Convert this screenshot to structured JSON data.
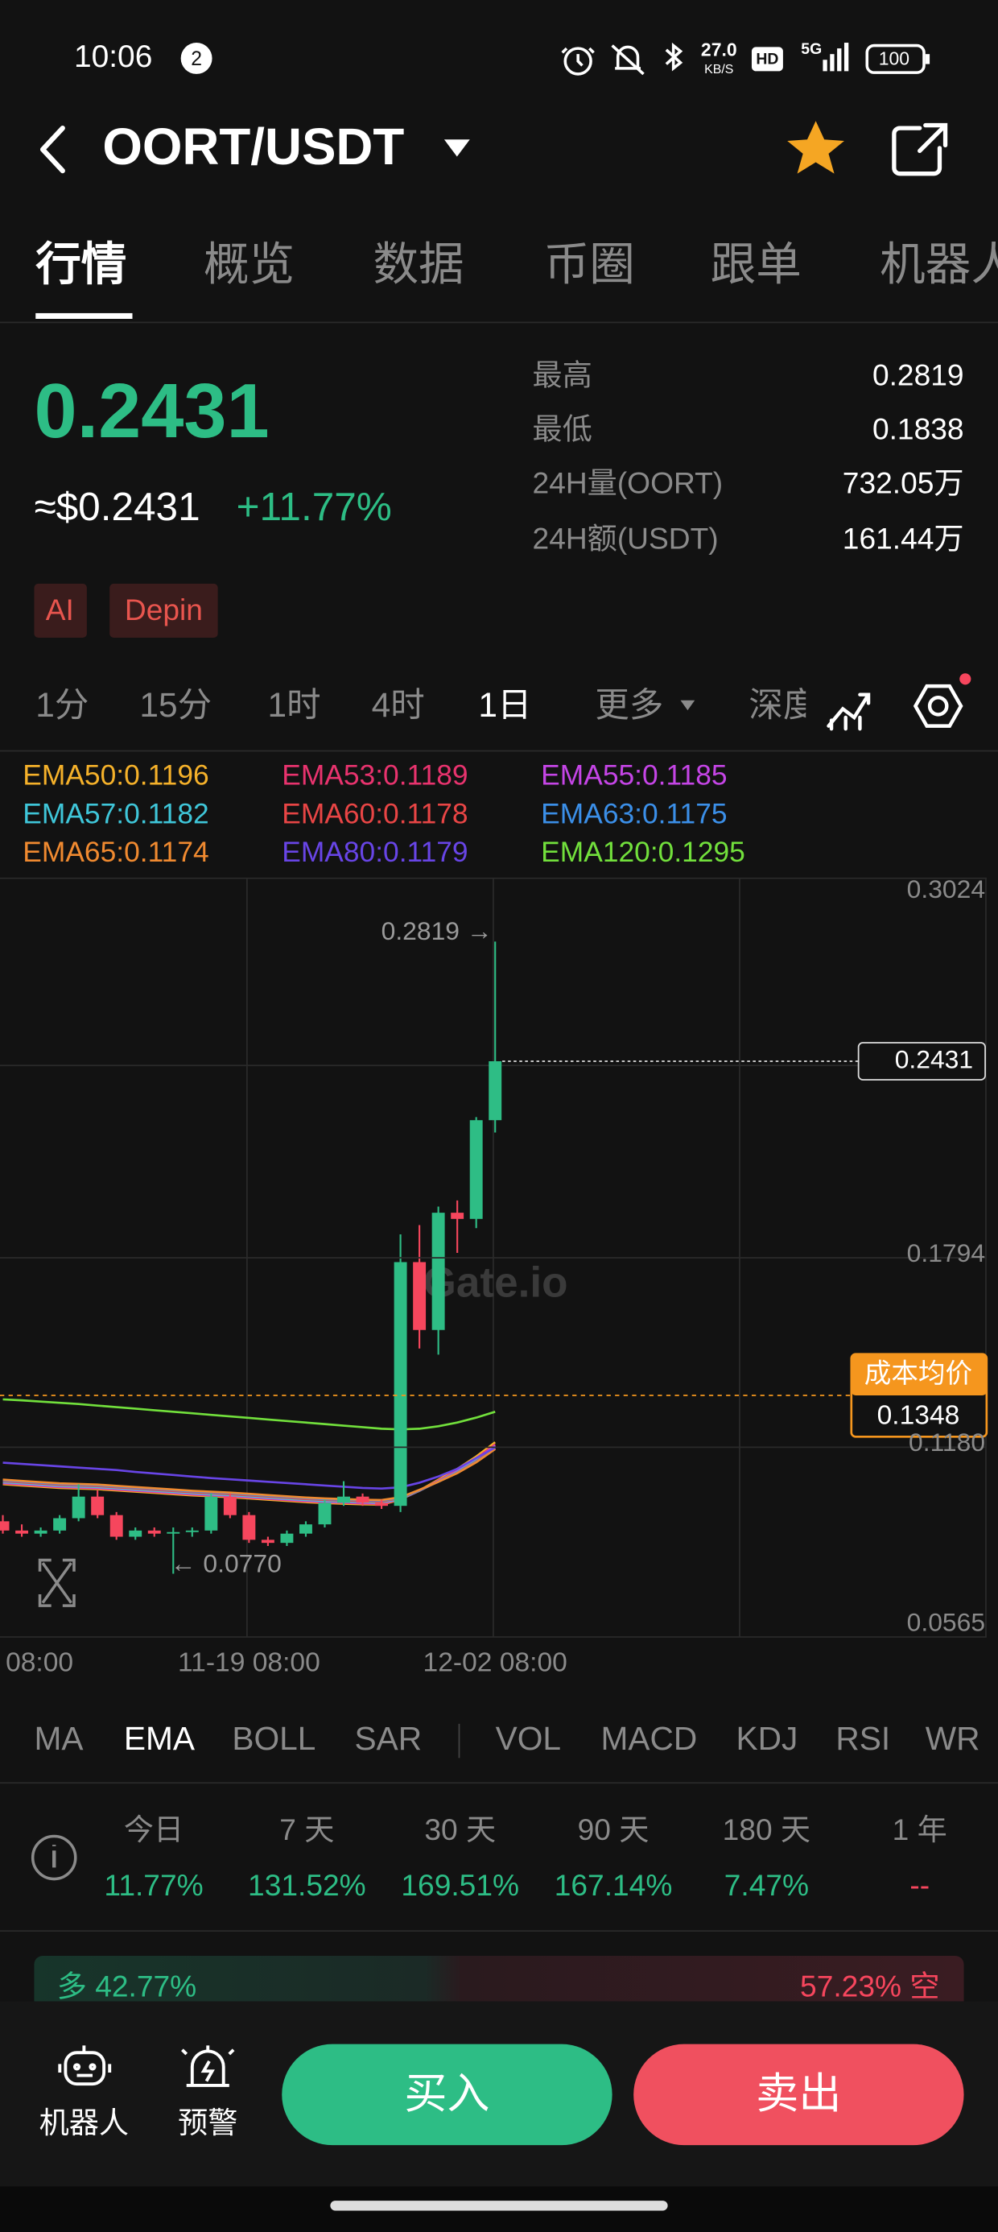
{
  "status_bar": {
    "time": "10:06",
    "badge": "2",
    "speed": "27.0",
    "speed_unit": "KB/S",
    "hd": "HD",
    "network": "5G",
    "battery": "100"
  },
  "header": {
    "pair": "OORT/USDT"
  },
  "tabs": [
    "行情",
    "概览",
    "数据",
    "币圈",
    "跟单",
    "机器人"
  ],
  "price": {
    "last": "0.2431",
    "usd": "≈$0.2431",
    "change": "+11.77%"
  },
  "stats": [
    {
      "label": "最高",
      "value": "0.2819"
    },
    {
      "label": "最低",
      "value": "0.1838"
    },
    {
      "label": "24H量(OORT)",
      "value": "732.05万"
    },
    {
      "label": "24H额(USDT)",
      "value": "161.44万"
    }
  ],
  "tags": [
    "AI",
    "Depin"
  ],
  "intervals": [
    "1分",
    "15分",
    "1时",
    "4时",
    "1日",
    "更多",
    "深度"
  ],
  "chart_data": {
    "type": "candlestick",
    "categories": [
      "08:00",
      null,
      null,
      null,
      null,
      null,
      null,
      null,
      null,
      null,
      null,
      null,
      null,
      "11-19 08:00",
      null,
      null,
      null,
      null,
      null,
      null,
      null,
      null,
      null,
      null,
      null,
      null,
      "12-02 08:00"
    ],
    "open": [
      0.094,
      0.091,
      0.09,
      0.091,
      0.095,
      0.102,
      0.096,
      0.089,
      0.091,
      0.09,
      0.0905,
      0.091,
      0.102,
      0.096,
      0.088,
      0.087,
      0.09,
      0.093,
      0.1,
      0.102,
      0.1,
      0.099,
      0.178,
      0.156,
      0.194,
      0.192,
      0.224
    ],
    "high": [
      0.096,
      0.093,
      0.092,
      0.096,
      0.106,
      0.104,
      0.097,
      0.092,
      0.092,
      0.092,
      0.092,
      0.103,
      0.103,
      0.097,
      0.089,
      0.091,
      0.094,
      0.101,
      0.107,
      0.103,
      0.101,
      0.187,
      0.19,
      0.196,
      0.198,
      0.225,
      0.2819
    ],
    "low": [
      0.09,
      0.089,
      0.089,
      0.09,
      0.094,
      0.095,
      0.088,
      0.088,
      0.089,
      0.077,
      0.089,
      0.09,
      0.095,
      0.087,
      0.086,
      0.086,
      0.089,
      0.092,
      0.099,
      0.099,
      0.098,
      0.097,
      0.15,
      0.148,
      0.181,
      0.189,
      0.22
    ],
    "close": [
      0.091,
      0.09,
      0.091,
      0.095,
      0.102,
      0.096,
      0.089,
      0.091,
      0.09,
      0.0905,
      0.091,
      0.102,
      0.096,
      0.088,
      0.087,
      0.09,
      0.093,
      0.1,
      0.102,
      0.1,
      0.099,
      0.178,
      0.156,
      0.194,
      0.192,
      0.224,
      0.2431
    ],
    "up_color": "#2ebd85",
    "down_color": "#f6465d",
    "series": [
      {
        "name": "EMA50:0.1196",
        "color": "#f5b12a",
        "values": [
          0.106,
          0.1056,
          0.1052,
          0.1048,
          0.1046,
          0.1044,
          0.104,
          0.1036,
          0.1032,
          0.1028,
          0.1024,
          0.1021,
          0.1018,
          0.1014,
          0.101,
          0.1006,
          0.1002,
          0.0999,
          0.0997,
          0.0995,
          0.0994,
          0.101,
          0.104,
          0.1075,
          0.111,
          0.115,
          0.1196
        ]
      },
      {
        "name": "EMA53:0.1189",
        "color": "#e8336e",
        "values": [
          0.1063,
          0.1059,
          0.1055,
          0.1051,
          0.1049,
          0.1047,
          0.1043,
          0.1039,
          0.1035,
          0.1031,
          0.1027,
          0.1024,
          0.1021,
          0.1017,
          0.1013,
          0.1009,
          0.1005,
          0.1002,
          0.1,
          0.0998,
          0.0997,
          0.1011,
          0.1039,
          0.1072,
          0.1105,
          0.1144,
          0.1189
        ]
      },
      {
        "name": "EMA55:0.1185",
        "color": "#c545e6",
        "values": [
          0.1065,
          0.1061,
          0.1057,
          0.1053,
          0.1051,
          0.1049,
          0.1045,
          0.1041,
          0.1037,
          0.1033,
          0.1029,
          0.1026,
          0.1023,
          0.1019,
          0.1015,
          0.1011,
          0.1007,
          0.1004,
          0.1002,
          0.1,
          0.0999,
          0.1012,
          0.1039,
          0.107,
          0.1102,
          0.114,
          0.1185
        ]
      },
      {
        "name": "EMA57:0.1182",
        "color": "#3fc6d9",
        "values": [
          0.1067,
          0.1063,
          0.1059,
          0.1055,
          0.1053,
          0.1051,
          0.1047,
          0.1043,
          0.1039,
          0.1035,
          0.1031,
          0.1028,
          0.1025,
          0.1021,
          0.1017,
          0.1013,
          0.1009,
          0.1006,
          0.1004,
          0.1002,
          0.1001,
          0.1013,
          0.1039,
          0.1069,
          0.11,
          0.1137,
          0.1182
        ]
      },
      {
        "name": "EMA60:0.1178",
        "color": "#e84545",
        "values": [
          0.107,
          0.1066,
          0.1062,
          0.1058,
          0.1056,
          0.1054,
          0.105,
          0.1046,
          0.1042,
          0.1038,
          0.1034,
          0.1031,
          0.1028,
          0.1024,
          0.102,
          0.1016,
          0.1012,
          0.1009,
          0.1007,
          0.1005,
          0.1004,
          0.1015,
          0.104,
          0.1068,
          0.1098,
          0.1134,
          0.1178
        ]
      },
      {
        "name": "EMA63:0.1175",
        "color": "#3b8fe8",
        "values": [
          0.1073,
          0.1069,
          0.1065,
          0.1061,
          0.1059,
          0.1057,
          0.1053,
          0.1049,
          0.1045,
          0.1041,
          0.1037,
          0.1034,
          0.1031,
          0.1027,
          0.1023,
          0.1019,
          0.1015,
          0.1012,
          0.101,
          0.1008,
          0.1007,
          0.1017,
          0.1041,
          0.1068,
          0.1097,
          0.1132,
          0.1175
        ]
      },
      {
        "name": "EMA65:0.1174",
        "color": "#f08a30",
        "values": [
          0.1075,
          0.1071,
          0.1067,
          0.1063,
          0.1061,
          0.1059,
          0.1055,
          0.1051,
          0.1047,
          0.1043,
          0.1039,
          0.1036,
          0.1033,
          0.1029,
          0.1025,
          0.1021,
          0.1017,
          0.1014,
          0.1012,
          0.101,
          0.1009,
          0.1018,
          0.1042,
          0.1068,
          0.1096,
          0.1131,
          0.1174
        ]
      },
      {
        "name": "EMA80:0.1179",
        "color": "#6845e6",
        "values": [
          0.113,
          0.1126,
          0.1122,
          0.1118,
          0.1114,
          0.111,
          0.1106,
          0.11,
          0.1095,
          0.109,
          0.1085,
          0.108,
          0.1076,
          0.1072,
          0.1068,
          0.1064,
          0.106,
          0.1056,
          0.1052,
          0.1048,
          0.1046,
          0.105,
          0.1065,
          0.1085,
          0.111,
          0.1145,
          0.1179
        ]
      },
      {
        "name": "EMA120:0.1295",
        "color": "#72e03c",
        "values": [
          0.1335,
          0.1332,
          0.1328,
          0.1324,
          0.132,
          0.1315,
          0.131,
          0.1305,
          0.13,
          0.1295,
          0.129,
          0.1285,
          0.128,
          0.1275,
          0.127,
          0.1265,
          0.126,
          0.1255,
          0.125,
          0.1245,
          0.124,
          0.1238,
          0.124,
          0.1248,
          0.126,
          0.1276,
          0.1295
        ]
      }
    ],
    "ylim": [
      0.0565,
      0.3024
    ],
    "yticks": [
      0.0565,
      {
        "value": 0.118,
        "label": "0.1180"
      },
      0.1794,
      0.3024
    ],
    "grid": true,
    "last_price": 0.2431,
    "cost": {
      "label": "成本均价",
      "value": 0.1348
    },
    "annotations": {
      "high_label": "0.2819 →",
      "low_label": "← 0.0770"
    },
    "watermark": "Gate.io"
  },
  "indicators": [
    "MA",
    "EMA",
    "BOLL",
    "SAR",
    "VOL",
    "MACD",
    "KDJ",
    "RSI",
    "WR"
  ],
  "performance": [
    {
      "period": "今日",
      "change": "11.77%"
    },
    {
      "period": "7 天",
      "change": "131.52%"
    },
    {
      "period": "30 天",
      "change": "169.51%"
    },
    {
      "period": "90 天",
      "change": "167.14%"
    },
    {
      "period": "180 天",
      "change": "7.47%"
    },
    {
      "period": "1 年",
      "change": "--"
    }
  ],
  "sentiment": {
    "long": "多 42.77%",
    "short": "57.23% 空"
  },
  "bottom_bar": {
    "robot": "机器人",
    "alert": "预警",
    "buy": "买入",
    "sell": "卖出"
  }
}
